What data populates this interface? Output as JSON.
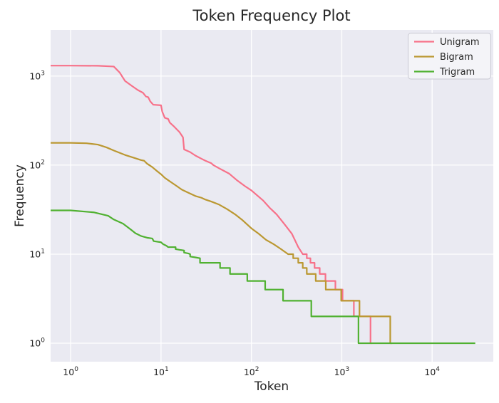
{
  "title": "Token Frequency Plot",
  "chart_data": {
    "type": "line",
    "title": "Token Frequency Plot",
    "xlabel": "Token",
    "ylabel": "Frequency",
    "xscale": "log",
    "yscale": "log",
    "xlim": [
      0.6,
      47500
    ],
    "ylim": [
      0.62,
      3300
    ],
    "x_ticks": [
      0,
      1,
      2,
      3,
      4
    ],
    "y_ticks": [
      0,
      1,
      2,
      3
    ],
    "tick_base": "10",
    "grid": true,
    "legend_position": "upper right",
    "background": "#eaeaf2",
    "grid_color": "#ffffff",
    "text_color": "#262626",
    "series": [
      {
        "name": "Unigram",
        "color": "#f77189",
        "points": [
          [
            0.6,
            1310
          ],
          [
            1,
            1310
          ],
          [
            2,
            1305
          ],
          [
            3,
            1280
          ],
          [
            3.5,
            1090
          ],
          [
            4,
            880
          ],
          [
            4.8,
            770
          ],
          [
            5.5,
            700
          ],
          [
            6.3,
            650
          ],
          [
            6.8,
            590
          ],
          [
            7.2,
            580
          ],
          [
            7.6,
            520
          ],
          [
            8.2,
            477
          ],
          [
            10,
            470
          ],
          [
            10.3,
            400
          ],
          [
            11,
            340
          ],
          [
            12,
            330
          ],
          [
            12.5,
            300
          ],
          [
            14,
            270
          ],
          [
            16,
            235
          ],
          [
            17.5,
            205
          ],
          [
            18,
            150
          ],
          [
            21,
            140
          ],
          [
            24,
            128
          ],
          [
            28,
            118
          ],
          [
            31,
            112
          ],
          [
            36,
            105
          ],
          [
            38,
            100
          ],
          [
            44,
            92
          ],
          [
            57,
            80
          ],
          [
            70,
            67
          ],
          [
            85,
            58
          ],
          [
            100,
            52
          ],
          [
            115,
            46
          ],
          [
            135,
            40
          ],
          [
            160,
            33
          ],
          [
            190,
            28
          ],
          [
            230,
            22
          ],
          [
            280,
            17
          ],
          [
            330,
            12
          ],
          [
            370,
            10
          ],
          [
            410,
            10
          ],
          [
            410,
            9
          ],
          [
            450,
            9
          ],
          [
            450,
            8
          ],
          [
            500,
            8
          ],
          [
            500,
            7
          ],
          [
            570,
            7
          ],
          [
            570,
            6
          ],
          [
            660,
            6
          ],
          [
            660,
            5
          ],
          [
            850,
            5
          ],
          [
            850,
            4
          ],
          [
            1020,
            4
          ],
          [
            1020,
            3
          ],
          [
            1360,
            3
          ],
          [
            1360,
            2
          ],
          [
            2080,
            2
          ],
          [
            2080,
            1
          ],
          [
            2150,
            1
          ]
        ]
      },
      {
        "name": "Bigram",
        "color": "#bb9832",
        "points": [
          [
            0.6,
            178
          ],
          [
            1,
            178
          ],
          [
            1.5,
            176
          ],
          [
            2,
            170
          ],
          [
            2.5,
            158
          ],
          [
            3,
            146
          ],
          [
            4,
            130
          ],
          [
            5,
            121
          ],
          [
            6,
            114
          ],
          [
            6.5,
            112
          ],
          [
            7,
            104
          ],
          [
            8,
            95
          ],
          [
            9,
            86
          ],
          [
            10,
            79
          ],
          [
            11,
            72
          ],
          [
            13,
            64
          ],
          [
            15,
            58
          ],
          [
            17,
            53
          ],
          [
            20,
            49
          ],
          [
            24,
            45
          ],
          [
            28,
            43
          ],
          [
            31,
            41
          ],
          [
            36,
            39
          ],
          [
            44,
            36
          ],
          [
            54,
            32
          ],
          [
            66,
            28
          ],
          [
            80,
            24
          ],
          [
            100,
            19.5
          ],
          [
            120,
            17
          ],
          [
            145,
            14.5
          ],
          [
            175,
            13
          ],
          [
            210,
            11.5
          ],
          [
            255,
            10
          ],
          [
            290,
            10
          ],
          [
            290,
            9
          ],
          [
            330,
            9
          ],
          [
            330,
            8
          ],
          [
            370,
            8
          ],
          [
            370,
            7
          ],
          [
            410,
            7
          ],
          [
            410,
            6
          ],
          [
            515,
            6
          ],
          [
            515,
            5
          ],
          [
            665,
            5
          ],
          [
            665,
            4
          ],
          [
            985,
            4
          ],
          [
            985,
            3
          ],
          [
            1570,
            3
          ],
          [
            1570,
            2
          ],
          [
            3440,
            2
          ],
          [
            3440,
            1
          ],
          [
            3600,
            1
          ]
        ]
      },
      {
        "name": "Trigram",
        "color": "#50b131",
        "points": [
          [
            0.6,
            31
          ],
          [
            1,
            31
          ],
          [
            1.8,
            29.5
          ],
          [
            2.6,
            27
          ],
          [
            3,
            24.5
          ],
          [
            3.8,
            22
          ],
          [
            4.6,
            19
          ],
          [
            5.2,
            17.2
          ],
          [
            6,
            16
          ],
          [
            7,
            15.3
          ],
          [
            8,
            15
          ],
          [
            8.3,
            14
          ],
          [
            10,
            13.6
          ],
          [
            10.5,
            13
          ],
          [
            11.5,
            12.4
          ],
          [
            12,
            12
          ],
          [
            14.5,
            12
          ],
          [
            14.5,
            11.4
          ],
          [
            16,
            11.2
          ],
          [
            18,
            11
          ],
          [
            18,
            10.4
          ],
          [
            20,
            10.2
          ],
          [
            21,
            10
          ],
          [
            21,
            9.4
          ],
          [
            24,
            9.2
          ],
          [
            27,
            9
          ],
          [
            27,
            8
          ],
          [
            45,
            8
          ],
          [
            45,
            7
          ],
          [
            58,
            7
          ],
          [
            58,
            6
          ],
          [
            90,
            6
          ],
          [
            90,
            5
          ],
          [
            142,
            5
          ],
          [
            142,
            4
          ],
          [
            224,
            4
          ],
          [
            224,
            3
          ],
          [
            460,
            3
          ],
          [
            460,
            2
          ],
          [
            1530,
            2
          ],
          [
            1530,
            1
          ],
          [
            30000,
            1
          ]
        ]
      }
    ]
  }
}
